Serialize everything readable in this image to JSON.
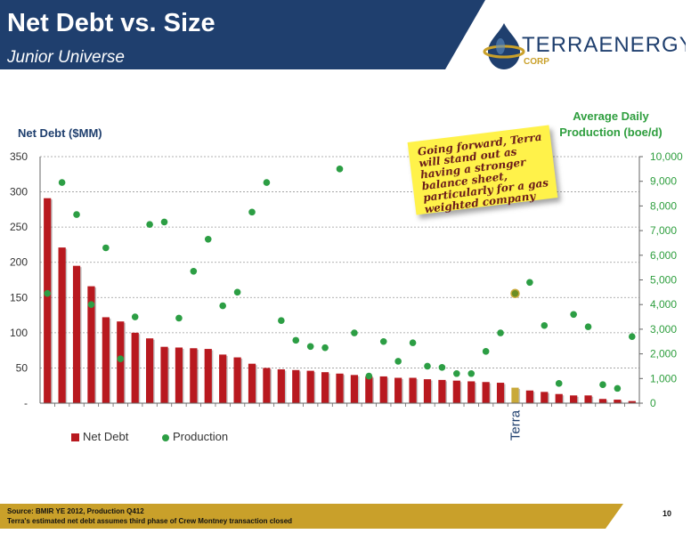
{
  "slide": {
    "title": "Net Debt vs. Size",
    "subtitle": "Junior Universe",
    "logo_text": "TERRAENERGY",
    "logo_subtext": "CORP",
    "sticky_note": "Going forward, Terra will stand out as having a stronger balance sheet, particularly for a gas weighted company",
    "footer_source": "Source: BMIR YE 2012, Production Q412",
    "footer_note": "Terra's estimated net debt assumes third phase of Crew Montney transaction closed",
    "page_number": "10",
    "colors": {
      "header_blue": "#1f3f6e",
      "bar_red": "#b8191f",
      "bar_terra": "#c9a93a",
      "dot_green": "#2c9e44",
      "dot_terra": "#6b8e23",
      "footer_gold": "#c9a02a"
    }
  },
  "chart_data": {
    "type": "bar",
    "left_axis_label": "Net Debt ($MM)",
    "right_axis_label_line1": "Average Daily",
    "right_axis_label_line2": "Production (boe/d)",
    "ylim_left": [
      0,
      350
    ],
    "ylim_right": [
      0,
      10000
    ],
    "left_ticks": [
      "-",
      "50",
      "100",
      "150",
      "200",
      "250",
      "300",
      "350"
    ],
    "right_ticks": [
      "0",
      "1,000",
      "2,000",
      "3,000",
      "4,000",
      "5,000",
      "6,000",
      "7,000",
      "8,000",
      "9,000",
      "10,000"
    ],
    "grid": "horizontal dashed",
    "legend_position": "bottom-left",
    "highlight_label": "Terra",
    "highlight_index": 32,
    "series": [
      {
        "name": "Net Debt",
        "kind": "bar",
        "values": [
          291,
          221,
          195,
          166,
          122,
          116,
          100,
          92,
          80,
          79,
          78,
          77,
          69,
          65,
          56,
          50,
          48,
          47,
          46,
          44,
          42,
          40,
          38,
          38,
          36,
          36,
          34,
          33,
          32,
          31,
          30,
          29,
          22,
          18,
          16,
          13,
          11,
          11,
          6,
          5,
          3
        ]
      },
      {
        "name": "Production",
        "kind": "scatter",
        "values": [
          4450,
          8950,
          7650,
          4000,
          6300,
          1800,
          3500,
          7250,
          7350,
          3450,
          5350,
          6650,
          3950,
          4500,
          7750,
          8950,
          3350,
          2550,
          2300,
          2250,
          9500,
          2850,
          1100,
          2500,
          1700,
          2450,
          1500,
          1450,
          1200,
          1200,
          2100,
          2850,
          4450,
          4900,
          3150,
          800,
          3600,
          3100,
          750,
          600,
          2700
        ]
      }
    ]
  }
}
